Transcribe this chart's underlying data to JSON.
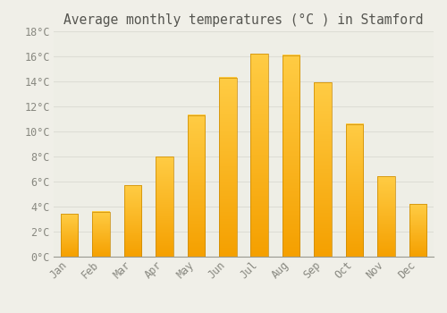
{
  "months": [
    "Jan",
    "Feb",
    "Mar",
    "Apr",
    "May",
    "Jun",
    "Jul",
    "Aug",
    "Sep",
    "Oct",
    "Nov",
    "Dec"
  ],
  "temperatures": [
    3.4,
    3.6,
    5.7,
    8.0,
    11.3,
    14.3,
    16.2,
    16.1,
    13.9,
    10.6,
    6.4,
    4.2
  ],
  "bar_color_light": "#FFCC44",
  "bar_color_dark": "#F5A000",
  "bar_edge_color": "#C88800",
  "title": "Average monthly temperatures (°C ) in Stamford",
  "ylim": [
    0,
    18
  ],
  "ytick_step": 2,
  "background_color": "#F0EFE8",
  "plot_bg_color": "#EEEEE6",
  "grid_color": "#DDDDD5",
  "title_fontsize": 10.5,
  "tick_fontsize": 8.5,
  "tick_color": "#888880"
}
